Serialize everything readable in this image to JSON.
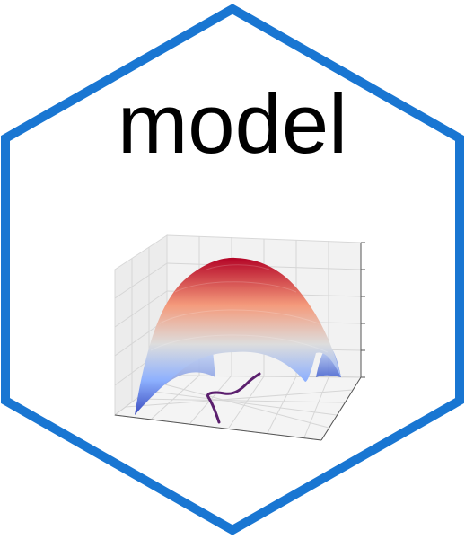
{
  "logo": {
    "title": "model",
    "border_color": "#1976d2",
    "background_color": "#ffffff",
    "text_color": "#000000",
    "surface_colormap": [
      "#3b4cc0",
      "#8db0fe",
      "#dddddd",
      "#f49a7b",
      "#b40426"
    ],
    "curve_color": "#5b1f6e",
    "icon": "3d-surface-plot-icon"
  }
}
